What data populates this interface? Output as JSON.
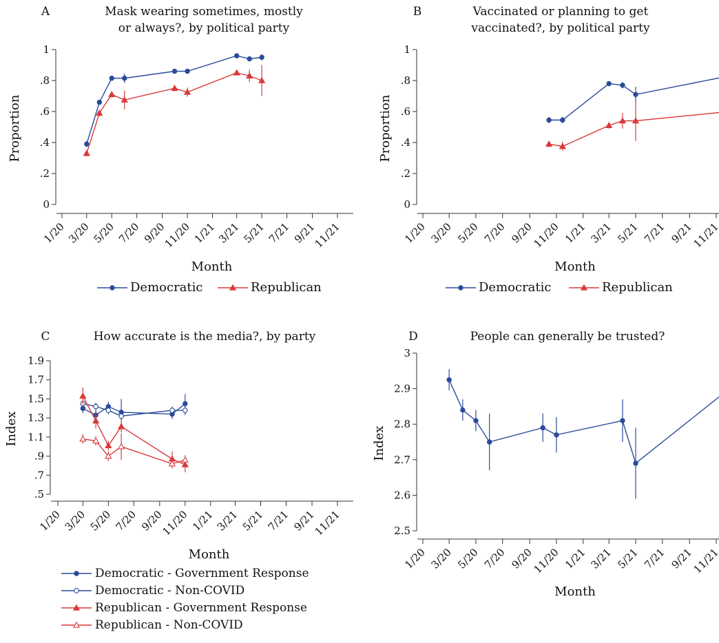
{
  "x_tick_labels": [
    "1/20",
    "3/20",
    "5/20",
    "7/20",
    "9/20",
    "11/20",
    "1/21",
    "3/21",
    "5/21",
    "7/21",
    "9/21",
    "11/21"
  ],
  "chart_data": [
    {
      "type": "line",
      "panel": "A",
      "title_line1": "Mask wearing sometimes, mostly",
      "title_line2": "or always?, by political party",
      "xlabel": "Month",
      "ylabel": "Proportion",
      "ylim": [
        0,
        1
      ],
      "y_ticks": [
        0,
        0.2,
        0.4,
        0.6,
        0.8,
        1
      ],
      "y_tick_labels": [
        "0",
        ".2",
        ".4",
        ".6",
        ".8",
        "1"
      ],
      "legend": [
        "Democratic",
        "Republican"
      ],
      "series": [
        {
          "name": "Democratic",
          "color": "#2a4a9a",
          "marker": "dot",
          "x": [
            "2020-03-01",
            "2020-04-01",
            "2020-05-01",
            "2020-06-01",
            "2020-10-01",
            "2020-11-01",
            "2021-03-01",
            "2021-04-01",
            "2021-05-01"
          ],
          "y": [
            0.39,
            0.66,
            0.815,
            0.815,
            0.86,
            0.86,
            0.96,
            0.94,
            0.95
          ],
          "err": [
            0.02,
            0.01,
            0.01,
            0.03,
            0.01,
            0.01,
            0.01,
            0.01,
            0.02
          ]
        },
        {
          "name": "Republican",
          "color": "#d83a3a",
          "marker": "tri",
          "x": [
            "2020-03-01",
            "2020-04-01",
            "2020-05-01",
            "2020-06-01",
            "2020-10-01",
            "2020-11-01",
            "2021-03-01",
            "2021-04-01",
            "2021-05-01"
          ],
          "y": [
            0.33,
            0.59,
            0.71,
            0.675,
            0.75,
            0.725,
            0.85,
            0.83,
            0.8
          ],
          "err": [
            0.02,
            0.02,
            0.02,
            0.06,
            0.02,
            0.03,
            0.01,
            0.04,
            0.1
          ]
        }
      ]
    },
    {
      "type": "line",
      "panel": "B",
      "title_line1": "Vaccinated or planning to get",
      "title_line2": "vaccinated?, by political party",
      "xlabel": "Month",
      "ylabel": "Proportion",
      "ylim": [
        0,
        1
      ],
      "y_ticks": [
        0,
        0.2,
        0.4,
        0.6,
        0.8,
        1
      ],
      "y_tick_labels": [
        "0",
        ".2",
        ".4",
        ".6",
        ".8",
        "1"
      ],
      "legend": [
        "Democratic",
        "Republican"
      ],
      "series": [
        {
          "name": "Democratic",
          "color": "#2a4a9a",
          "marker": "dot",
          "x": [
            "2020-10-15",
            "2020-11-15",
            "2021-03-01",
            "2021-04-01",
            "2021-05-01",
            "2021-12-01"
          ],
          "y": [
            0.545,
            0.545,
            0.78,
            0.77,
            0.71,
            0.83
          ],
          "err": [
            0.02,
            0.02,
            0.01,
            0.02,
            0.05,
            0.005
          ]
        },
        {
          "name": "Republican",
          "color": "#d83a3a",
          "marker": "tri",
          "x": [
            "2020-10-15",
            "2020-11-15",
            "2021-03-01",
            "2021-04-01",
            "2021-05-01",
            "2021-12-01"
          ],
          "y": [
            0.39,
            0.375,
            0.51,
            0.54,
            0.54,
            0.6
          ],
          "err": [
            0.02,
            0.03,
            0.02,
            0.05,
            0.13,
            0.02
          ]
        }
      ]
    },
    {
      "type": "line",
      "panel": "C",
      "title": "How accurate is the media?, by party",
      "xlabel": "Month",
      "ylabel": "Index",
      "ylim": [
        0.5,
        1.9
      ],
      "y_ticks": [
        0.5,
        0.7,
        0.9,
        1.1,
        1.3,
        1.5,
        1.7,
        1.9
      ],
      "y_tick_labels": [
        ".5",
        ".7",
        ".9",
        "1.1",
        "1.3",
        "1.5",
        "1.7",
        "1.9"
      ],
      "legend": [
        "Democratic - Government Response",
        "Democratic - Non-COVID",
        "Republican - Government Response",
        "Republican - Non-COVID"
      ],
      "series": [
        {
          "name": "Democratic - Government Response",
          "color": "#2a4a9a",
          "marker": "dot",
          "x": [
            "2020-03-01",
            "2020-04-01",
            "2020-05-01",
            "2020-06-01",
            "2020-10-01",
            "2020-11-01"
          ],
          "y": [
            1.4,
            1.33,
            1.42,
            1.36,
            1.34,
            1.45
          ],
          "err": [
            0.05,
            0.05,
            0.05,
            0.14,
            0.05,
            0.1
          ]
        },
        {
          "name": "Democratic - Non-COVID",
          "color": "#2a4a9a",
          "marker": "ocircle",
          "x": [
            "2020-03-01",
            "2020-04-01",
            "2020-05-01",
            "2020-06-01",
            "2020-10-01",
            "2020-11-01"
          ],
          "y": [
            1.45,
            1.42,
            1.38,
            1.32,
            1.38,
            1.38
          ],
          "err": [
            0.04,
            0.04,
            0.04,
            0.04,
            0.04,
            0.05
          ]
        },
        {
          "name": "Republican - Government Response",
          "color": "#d83a3a",
          "marker": "tri",
          "x": [
            "2020-03-01",
            "2020-04-01",
            "2020-05-01",
            "2020-06-01",
            "2020-10-01",
            "2020-11-01"
          ],
          "y": [
            1.53,
            1.27,
            1.01,
            1.21,
            0.87,
            0.81
          ],
          "err": [
            0.09,
            0.08,
            0.05,
            0.06,
            0.08,
            0.08
          ]
        },
        {
          "name": "Republican - Non-COVID",
          "color": "#d83a3a",
          "marker": "otri",
          "x": [
            "2020-03-01",
            "2020-04-01",
            "2020-05-01",
            "2020-06-01",
            "2020-10-01",
            "2020-11-01"
          ],
          "y": [
            1.08,
            1.06,
            0.9,
            1.0,
            0.82,
            0.86
          ],
          "err": [
            0.05,
            0.05,
            0.05,
            0.14,
            0.05,
            0.05
          ]
        }
      ]
    },
    {
      "type": "line",
      "panel": "D",
      "title": "People can generally be trusted?",
      "xlabel": "Month",
      "ylabel": "Index",
      "ylim": [
        2.5,
        3
      ],
      "y_ticks": [
        2.5,
        2.6,
        2.7,
        2.8,
        2.9,
        3
      ],
      "y_tick_labels": [
        "2.5",
        "2.6",
        "2.7",
        "2.8",
        "2.9",
        "3"
      ],
      "legend": [],
      "series": [
        {
          "name": "",
          "color": "#2a4a9a",
          "marker": "dot",
          "x": [
            "2020-03-01",
            "2020-04-01",
            "2020-05-01",
            "2020-06-01",
            "2020-10-01",
            "2020-11-01",
            "2021-04-01",
            "2021-05-01",
            "2021-12-01"
          ],
          "y": [
            2.925,
            2.84,
            2.81,
            2.75,
            2.79,
            2.77,
            2.81,
            2.69,
            2.9
          ],
          "err": [
            0.03,
            0.03,
            0.03,
            0.08,
            0.04,
            0.05,
            0.06,
            0.1,
            0.03
          ]
        }
      ]
    }
  ]
}
